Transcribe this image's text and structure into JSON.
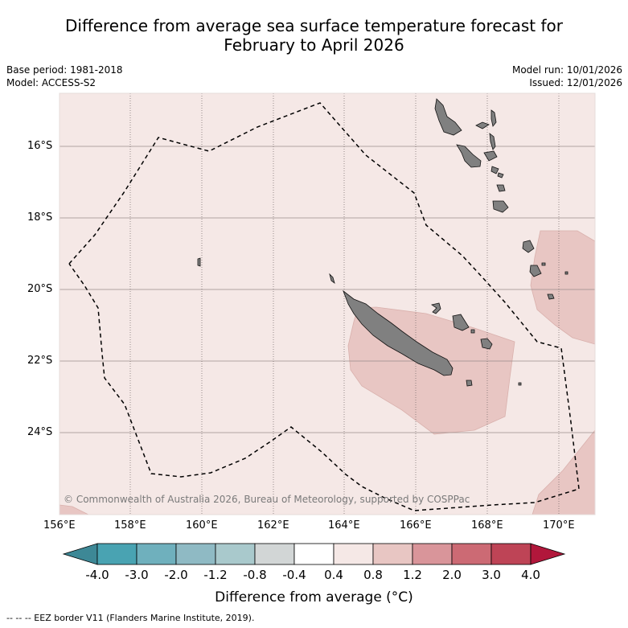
{
  "title": {
    "line1": "Difference from average sea surface temperature forecast for",
    "line2": "February to April 2026"
  },
  "info": {
    "base_period": "Base period: 1981-2018",
    "model": "Model: ACCESS-S2",
    "model_run": "Model run: 10/01/2026",
    "issued": "Issued: 12/01/2026"
  },
  "map": {
    "lat_labels": [
      "16°S",
      "18°S",
      "20°S",
      "22°S",
      "24°S"
    ],
    "lon_labels": [
      "156°E",
      "158°E",
      "160°E",
      "162°E",
      "164°E",
      "166°E",
      "168°E",
      "170°E"
    ],
    "copyright": "© Commonwealth of Australia 2026, Bureau of Meteorology, supported by COSPPac",
    "land_color": "#808080",
    "ocean_anomaly_color": "#f5e8e6",
    "warm_anomaly_color": "#e8c6c3"
  },
  "colorbar": {
    "labels": [
      "-4.0",
      "-3.0",
      "-2.0",
      "-1.2",
      "-0.8",
      "-0.4",
      "0.4",
      "0.8",
      "1.2",
      "2.0",
      "3.0",
      "4.0"
    ],
    "colors": [
      "#3d8896",
      "#49a3b2",
      "#6fb0bd",
      "#8fbac4",
      "#a9c9cc",
      "#d2d6d6",
      "#ffffff",
      "#f5e8e6",
      "#e8c6c3",
      "#d9959a",
      "#cc6a74",
      "#be4456",
      "#b1173b"
    ],
    "title": "Difference from average (°C)"
  },
  "footer": {
    "legend_text": "--  --  -- EEZ border V11 (Flanders Marine Institute, 2019)."
  }
}
